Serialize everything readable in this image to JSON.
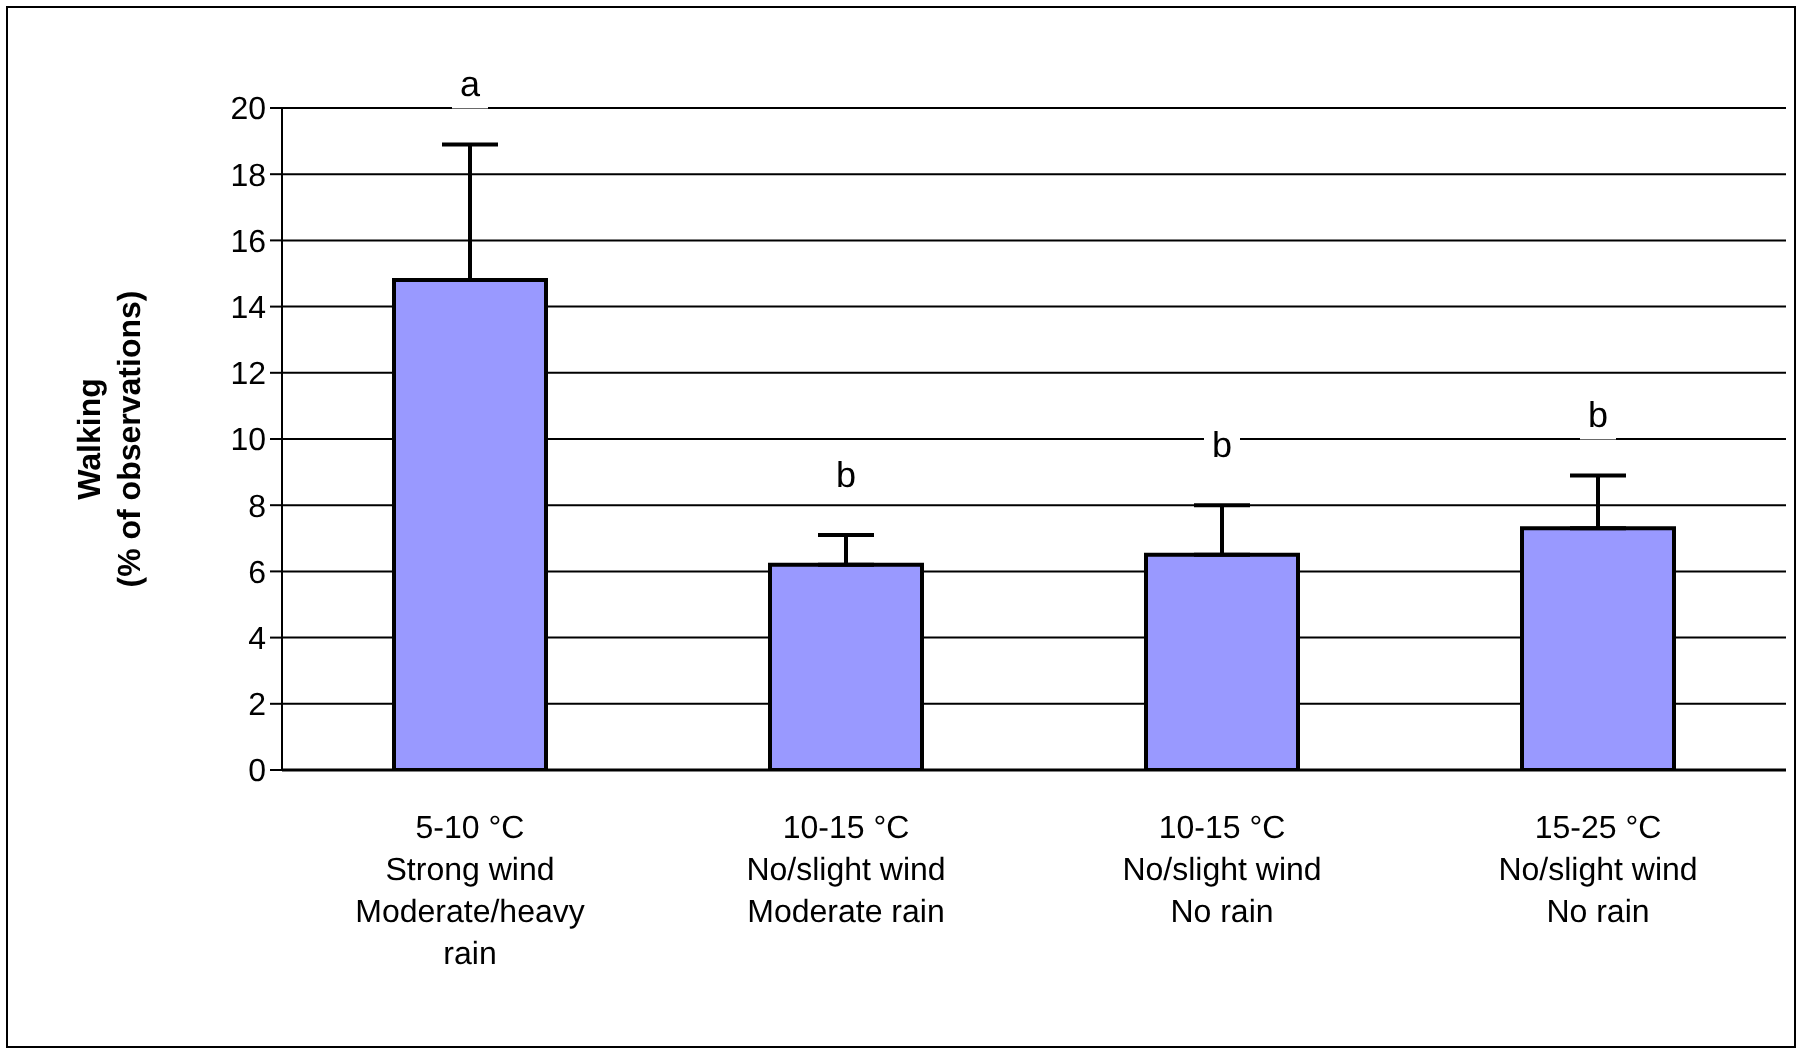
{
  "chart_data": {
    "type": "bar",
    "ylabel": "Walking\n(% of observations)",
    "categories": [
      "5-10 °C\nStrong wind\nModerate/heavy\nrain",
      "10-15 °C\nNo/slight wind\nModerate rain",
      "10-15 °C\nNo/slight wind\nNo rain",
      "15-25 °C\nNo/slight wind\nNo rain"
    ],
    "values": [
      14.8,
      6.2,
      6.5,
      7.3
    ],
    "errors": [
      [
        14.8,
        18.9
      ],
      [
        6.2,
        7.1
      ],
      [
        6.5,
        8.0
      ],
      [
        7.3,
        8.9
      ]
    ],
    "color": "#9999ff",
    "ylim": [
      0,
      20
    ],
    "yticks": [
      0,
      2,
      4,
      6,
      8,
      10,
      12,
      14,
      16,
      18,
      20
    ],
    "grid": "y",
    "legend": false,
    "annotations": [
      "a",
      "b",
      "b",
      "b"
    ]
  }
}
